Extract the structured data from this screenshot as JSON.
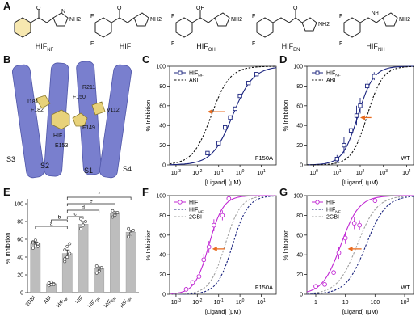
{
  "panels": {
    "A": "A",
    "B": "B",
    "C": "C",
    "D": "D",
    "E": "E",
    "F": "F",
    "G": "G"
  },
  "compounds": [
    {
      "base": "HIF",
      "sub": "NF"
    },
    {
      "base": "HIF",
      "sub": ""
    },
    {
      "base": "HIF",
      "sub": "OH"
    },
    {
      "base": "HIF",
      "sub": "EN"
    },
    {
      "base": "HIF",
      "sub": "NH"
    }
  ],
  "structure_atoms": {
    "F": "F",
    "OH": "OH",
    "O": "O",
    "NH2": "NH2",
    "NH": "NH",
    "N": "N",
    "H": "H"
  },
  "structure_labels": {
    "helices": [
      "S1",
      "S2",
      "S3",
      "S4"
    ],
    "residues": [
      "R211",
      "F150",
      "I181",
      "F182",
      "HIF",
      "F149",
      "E153",
      "V112"
    ]
  },
  "chart_data": [
    {
      "id": "C",
      "type": "line",
      "xscale": "log",
      "xlim": [
        -3.3,
        1.7
      ],
      "ylim": [
        0,
        100
      ],
      "xlabel": "[Ligand]  (μM)",
      "ylabel": "% Inhibition",
      "xticks": [
        "10^-3",
        "10^-2",
        "10^-1",
        "10^0",
        "10^1"
      ],
      "yticks": [
        0,
        20,
        40,
        60,
        80,
        100
      ],
      "annotation": "F150A",
      "legend": [
        {
          "base": "HIF",
          "sub": "NF",
          "style": "marker-line"
        },
        {
          "base": "ABI",
          "sub": "",
          "style": "dashed"
        }
      ],
      "points": [
        {
          "x": 0.03,
          "y": 12
        },
        {
          "x": 0.1,
          "y": 22
        },
        {
          "x": 0.2,
          "y": 38
        },
        {
          "x": 0.35,
          "y": 48
        },
        {
          "x": 0.6,
          "y": 57
        },
        {
          "x": 1.0,
          "y": 70
        },
        {
          "x": 2.5,
          "y": 83
        },
        {
          "x": 6,
          "y": 92
        }
      ],
      "curves": [
        {
          "name": "HIF_NF",
          "ec50": 0.45,
          "hill": 0.9,
          "color": "#1a237e",
          "dash": false
        },
        {
          "name": "ABI",
          "ec50": 0.045,
          "hill": 1.0,
          "color": "#111111",
          "dash": true
        }
      ],
      "arrow": {
        "x_from": 0.2,
        "x_to": 0.03,
        "y": 54
      }
    },
    {
      "id": "D",
      "type": "line",
      "xscale": "log",
      "xlim": [
        -0.3,
        4.3
      ],
      "ylim": [
        0,
        100
      ],
      "xlabel": "[Ligand]  (μM)",
      "ylabel": "% Inhibition",
      "xticks": [
        "10^0",
        "10^1",
        "10^2",
        "10^3",
        "10^4"
      ],
      "yticks": [
        0,
        20,
        40,
        60,
        80,
        100
      ],
      "annotation": "WT",
      "legend": [
        {
          "base": "HIF",
          "sub": "NF",
          "style": "marker-line"
        },
        {
          "base": "ABI",
          "sub": "",
          "style": "dashed"
        }
      ],
      "points": [
        {
          "x": 10,
          "y": 6,
          "err": 4
        },
        {
          "x": 20,
          "y": 20,
          "err": 8
        },
        {
          "x": 40,
          "y": 35,
          "err": 10
        },
        {
          "x": 70,
          "y": 50,
          "err": 10
        },
        {
          "x": 100,
          "y": 60,
          "err": 8
        },
        {
          "x": 200,
          "y": 80,
          "err": 6
        },
        {
          "x": 400,
          "y": 90,
          "err": 4
        }
      ],
      "curves": [
        {
          "name": "HIF_NF",
          "ec50": 80,
          "hill": 1.3,
          "color": "#1a237e",
          "dash": false
        },
        {
          "name": "ABI",
          "ec50": 200,
          "hill": 1.3,
          "color": "#111111",
          "dash": true
        }
      ],
      "arrow": {
        "x_from": 300,
        "x_to": 100,
        "y": 48
      }
    },
    {
      "id": "E",
      "type": "bar",
      "ylim": [
        0,
        100
      ],
      "ylabel": "% Inhibition",
      "yticks": [
        0,
        20,
        40,
        60,
        80,
        100
      ],
      "categories": [
        {
          "base": "2GBI",
          "sub": ""
        },
        {
          "base": "ABI",
          "sub": ""
        },
        {
          "base": "HIF",
          "sub": "NF"
        },
        {
          "base": "HIF",
          "sub": ""
        },
        {
          "base": "HIF",
          "sub": "OH"
        },
        {
          "base": "HIF",
          "sub": "EN"
        },
        {
          "base": "HIF",
          "sub": "NH"
        }
      ],
      "values": [
        55,
        10,
        44,
        77,
        27,
        89,
        68
      ],
      "errors": [
        2,
        1,
        4,
        3,
        2,
        2,
        2
      ],
      "scatter": [
        [
          50,
          53,
          55,
          57,
          59,
          52,
          56
        ],
        [
          8,
          9,
          10,
          11,
          12,
          9
        ],
        [
          35,
          40,
          44,
          48,
          52,
          55,
          38
        ],
        [
          72,
          76,
          80,
          83
        ],
        [
          22,
          25,
          28,
          30,
          24
        ],
        [
          85,
          88,
          90,
          92,
          87
        ],
        [
          63,
          67,
          70,
          72,
          66
        ]
      ],
      "brackets": [
        {
          "label": "a",
          "from": 0,
          "to": 2
        },
        {
          "label": "b",
          "from": 1,
          "to": 2
        },
        {
          "label": "c",
          "from": 2,
          "to": 3
        },
        {
          "label": "d",
          "from": 2,
          "to": 4
        },
        {
          "label": "e",
          "from": 2,
          "to": 5
        },
        {
          "label": "f",
          "from": 2,
          "to": 6
        }
      ]
    },
    {
      "id": "F",
      "type": "line",
      "xscale": "log",
      "xlim": [
        -3.3,
        1.7
      ],
      "ylim": [
        0,
        100
      ],
      "xlabel": "[Ligand]  (μM)",
      "ylabel": "% Inhibition",
      "xticks": [
        "10^-3",
        "10^-2",
        "10^-1",
        "10^0",
        "10^1"
      ],
      "yticks": [
        0,
        20,
        40,
        60,
        80,
        100
      ],
      "annotation": "F150A",
      "legend": [
        {
          "base": "HIF",
          "sub": "",
          "style": "marker-line"
        },
        {
          "base": "HIF",
          "sub": "NF",
          "style": "dashed-blue"
        },
        {
          "base": "2GBI",
          "sub": "",
          "style": "dashed-gray"
        }
      ],
      "points": [
        {
          "x": 0.003,
          "y": 5
        },
        {
          "x": 0.006,
          "y": 12
        },
        {
          "x": 0.012,
          "y": 18
        },
        {
          "x": 0.02,
          "y": 35,
          "err": 6
        },
        {
          "x": 0.035,
          "y": 48,
          "err": 6
        },
        {
          "x": 0.06,
          "y": 70,
          "err": 6
        },
        {
          "x": 0.15,
          "y": 80,
          "err": 5
        },
        {
          "x": 0.3,
          "y": 97
        }
      ],
      "curves": [
        {
          "name": "HIF",
          "ec50": 0.035,
          "hill": 1.3,
          "color": "#c026d3",
          "dash": false
        },
        {
          "name": "HIF_NF",
          "ec50": 0.45,
          "hill": 1.2,
          "color": "#1a237e",
          "dash": true
        },
        {
          "name": "2GBI",
          "ec50": 0.2,
          "hill": 1.2,
          "color": "#9e9e9e",
          "dash": true
        }
      ],
      "arrow": {
        "x_from": 0.2,
        "x_to": 0.05,
        "y": 46
      }
    },
    {
      "id": "G",
      "type": "line",
      "xscale": "log",
      "xlim": [
        -0.3,
        3.3
      ],
      "ylim": [
        0,
        100
      ],
      "xlabel": "[Ligand]  (μM)",
      "ylabel": "% Inhibition",
      "xticks": [
        "1",
        "10",
        "100",
        "10^3"
      ],
      "yticks": [
        0,
        20,
        40,
        60,
        80,
        100
      ],
      "annotation": "WT",
      "legend": [
        {
          "base": "HIF",
          "sub": "",
          "style": "marker-line"
        },
        {
          "base": "HIF",
          "sub": "NF",
          "style": "dashed-blue"
        },
        {
          "base": "2GBI",
          "sub": "",
          "style": "dashed-gray"
        }
      ],
      "points": [
        {
          "x": 1,
          "y": 8
        },
        {
          "x": 2,
          "y": 10
        },
        {
          "x": 4,
          "y": 22
        },
        {
          "x": 6,
          "y": 42,
          "err": 6
        },
        {
          "x": 10,
          "y": 57,
          "err": 6
        },
        {
          "x": 20,
          "y": 72,
          "err": 6
        },
        {
          "x": 30,
          "y": 70,
          "err": 5
        },
        {
          "x": 100,
          "y": 95
        }
      ],
      "curves": [
        {
          "name": "HIF",
          "ec50": 7,
          "hill": 1.4,
          "color": "#c026d3",
          "dash": false
        },
        {
          "name": "HIF_NF",
          "ec50": 50,
          "hill": 1.3,
          "color": "#1a237e",
          "dash": true
        },
        {
          "name": "2GBI",
          "ec50": 25,
          "hill": 1.3,
          "color": "#9e9e9e",
          "dash": true
        }
      ],
      "arrow": {
        "x_from": 35,
        "x_to": 12,
        "y": 46
      }
    }
  ]
}
